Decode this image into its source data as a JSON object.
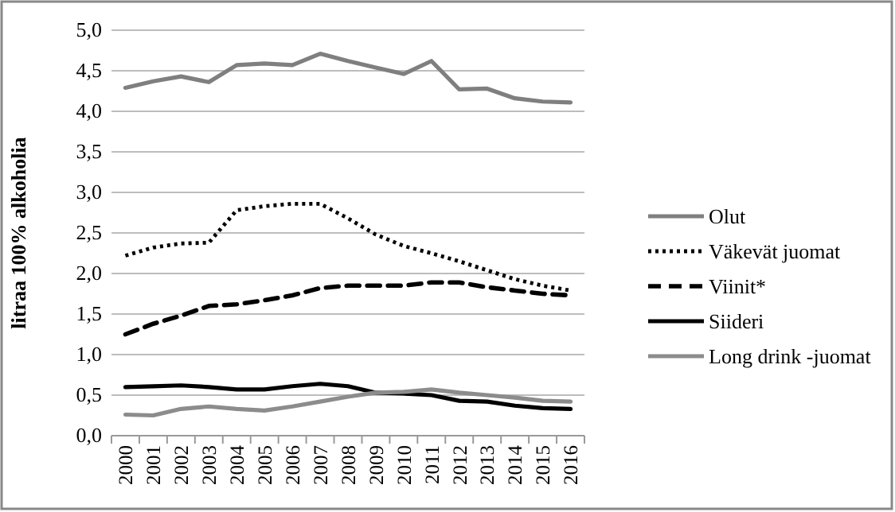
{
  "chart_data": {
    "type": "line",
    "ylabel": "litraa 100% alkoholia",
    "categories": [
      "2000",
      "2001",
      "2002",
      "2003",
      "2004",
      "2005",
      "2006",
      "2007",
      "2008",
      "2009",
      "2010",
      "2011",
      "2012",
      "2013",
      "2014",
      "2015",
      "2016"
    ],
    "ylim": [
      0,
      5
    ],
    "yticks": [
      {
        "value": 0,
        "label": "0,0"
      },
      {
        "value": 0.5,
        "label": "0,5"
      },
      {
        "value": 1,
        "label": "1,0"
      },
      {
        "value": 1.5,
        "label": "1,5"
      },
      {
        "value": 2,
        "label": "2,0"
      },
      {
        "value": 2.5,
        "label": "2,5"
      },
      {
        "value": 3,
        "label": "3,0"
      },
      {
        "value": 3.5,
        "label": "3,5"
      },
      {
        "value": 4,
        "label": "4,0"
      },
      {
        "value": 4.5,
        "label": "4,5"
      },
      {
        "value": 5,
        "label": "5,0"
      }
    ],
    "grid": "y",
    "legend": "right",
    "marker": "none",
    "series": [
      {
        "name": "Olut",
        "color": "#7f7f7f",
        "line_style": "solid",
        "values": [
          4.29,
          4.37,
          4.43,
          4.36,
          4.57,
          4.59,
          4.57,
          4.71,
          4.62,
          4.54,
          4.46,
          4.62,
          4.27,
          4.28,
          4.16,
          4.12,
          4.11
        ]
      },
      {
        "name": "Väkevät juomat",
        "color": "#000000",
        "line_style": "dotted",
        "values": [
          2.22,
          2.32,
          2.37,
          2.38,
          2.78,
          2.83,
          2.86,
          2.86,
          2.68,
          2.48,
          2.34,
          2.25,
          2.15,
          2.04,
          1.93,
          1.85,
          1.79
        ]
      },
      {
        "name": "Viinit*",
        "color": "#000000",
        "line_style": "dashed",
        "values": [
          1.25,
          1.38,
          1.48,
          1.6,
          1.62,
          1.67,
          1.73,
          1.82,
          1.85,
          1.85,
          1.85,
          1.89,
          1.89,
          1.83,
          1.79,
          1.75,
          1.73
        ]
      },
      {
        "name": "Siideri",
        "color": "#000000",
        "line_style": "solid",
        "values": [
          0.6,
          0.61,
          0.62,
          0.6,
          0.57,
          0.57,
          0.61,
          0.64,
          0.61,
          0.53,
          0.52,
          0.5,
          0.43,
          0.42,
          0.37,
          0.34,
          0.33
        ]
      },
      {
        "name": "Long drink -juomat",
        "color": "#8c8c8c",
        "line_style": "solid",
        "values": [
          0.26,
          0.25,
          0.33,
          0.36,
          0.33,
          0.31,
          0.36,
          0.42,
          0.48,
          0.53,
          0.54,
          0.57,
          0.53,
          0.5,
          0.47,
          0.43,
          0.42
        ]
      }
    ]
  }
}
